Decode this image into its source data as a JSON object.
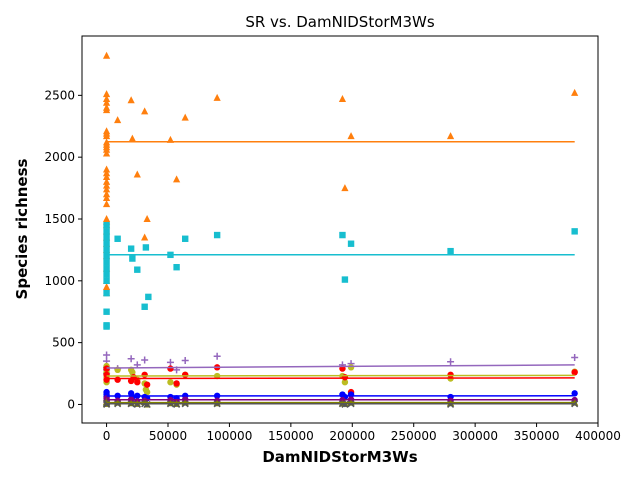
{
  "chart_data": {
    "type": "scatter",
    "title": "SR vs. DamNIDStorM3Ws",
    "xlabel": "DamNIDStorM3Ws",
    "ylabel": "Species richness",
    "xlim": [
      -20000,
      400000
    ],
    "ylim": [
      -150,
      2980
    ],
    "xticks": [
      0,
      50000,
      100000,
      150000,
      200000,
      250000,
      300000,
      350000,
      400000
    ],
    "yticks": [
      0,
      500,
      1000,
      1500,
      2000,
      2500
    ],
    "grid": false,
    "legend": false,
    "series": [
      {
        "marker": "triangle",
        "color": "#ff7f0e",
        "points": [
          [
            0,
            2820
          ],
          [
            0,
            2510
          ],
          [
            0,
            2470
          ],
          [
            0,
            2440
          ],
          [
            0,
            2400
          ],
          [
            0,
            2380
          ],
          [
            0,
            2210
          ],
          [
            0,
            2190
          ],
          [
            0,
            2170
          ],
          [
            0,
            2120
          ],
          [
            0,
            2100
          ],
          [
            0,
            2080
          ],
          [
            0,
            2060
          ],
          [
            0,
            2030
          ],
          [
            0,
            1900
          ],
          [
            0,
            1870
          ],
          [
            0,
            1840
          ],
          [
            0,
            1800
          ],
          [
            0,
            1770
          ],
          [
            0,
            1740
          ],
          [
            0,
            1700
          ],
          [
            0,
            1670
          ],
          [
            0,
            1620
          ],
          [
            0,
            1500
          ],
          [
            0,
            1480
          ],
          [
            0,
            1450
          ],
          [
            0,
            1400
          ],
          [
            0,
            1350
          ],
          [
            0,
            1300
          ],
          [
            0,
            1250
          ],
          [
            0,
            1200
          ],
          [
            0,
            1100
          ],
          [
            0,
            1000
          ],
          [
            0,
            950
          ],
          [
            0,
            900
          ],
          [
            9000,
            2300
          ],
          [
            20000,
            2460
          ],
          [
            21000,
            2150
          ],
          [
            25000,
            1860
          ],
          [
            31000,
            2370
          ],
          [
            31000,
            1350
          ],
          [
            33000,
            1500
          ],
          [
            52000,
            2140
          ],
          [
            57000,
            1820
          ],
          [
            64000,
            2320
          ],
          [
            90000,
            2480
          ],
          [
            192000,
            2470
          ],
          [
            194000,
            1750
          ],
          [
            199000,
            2170
          ],
          [
            280000,
            2170
          ],
          [
            381000,
            2520
          ]
        ],
        "fit": [
          [
            0,
            2125
          ],
          [
            381000,
            2125
          ]
        ]
      },
      {
        "marker": "square",
        "color": "#17becf",
        "points": [
          [
            0,
            1450
          ],
          [
            0,
            1400
          ],
          [
            0,
            1350
          ],
          [
            0,
            1300
          ],
          [
            0,
            1250
          ],
          [
            0,
            1200
          ],
          [
            0,
            1150
          ],
          [
            0,
            1100
          ],
          [
            0,
            1050
          ],
          [
            0,
            1000
          ],
          [
            0,
            900
          ],
          [
            0,
            750
          ],
          [
            0,
            640
          ],
          [
            0,
            630
          ],
          [
            9000,
            1340
          ],
          [
            20000,
            1260
          ],
          [
            21000,
            1180
          ],
          [
            25000,
            1090
          ],
          [
            31000,
            790
          ],
          [
            32000,
            1270
          ],
          [
            34000,
            870
          ],
          [
            52000,
            1210
          ],
          [
            57000,
            1110
          ],
          [
            64000,
            1340
          ],
          [
            90000,
            1370
          ],
          [
            192000,
            1370
          ],
          [
            194000,
            1010
          ],
          [
            199000,
            1300
          ],
          [
            280000,
            1240
          ],
          [
            381000,
            1400
          ]
        ],
        "fit": [
          [
            0,
            1210
          ],
          [
            381000,
            1210
          ]
        ]
      },
      {
        "marker": "plus",
        "color": "#9467bd",
        "points": [
          [
            0,
            400
          ],
          [
            0,
            350
          ],
          [
            0,
            300
          ],
          [
            0,
            280
          ],
          [
            0,
            250
          ],
          [
            9000,
            290
          ],
          [
            20000,
            370
          ],
          [
            25000,
            320
          ],
          [
            31000,
            360
          ],
          [
            52000,
            340
          ],
          [
            57000,
            280
          ],
          [
            64000,
            355
          ],
          [
            90000,
            390
          ],
          [
            192000,
            320
          ],
          [
            199000,
            330
          ],
          [
            280000,
            345
          ],
          [
            381000,
            380
          ]
        ],
        "fit": [
          [
            0,
            295
          ],
          [
            381000,
            320
          ]
        ]
      },
      {
        "marker": "circle",
        "color": "#bcbd22",
        "points": [
          [
            0,
            310
          ],
          [
            0,
            260
          ],
          [
            0,
            220
          ],
          [
            0,
            180
          ],
          [
            9000,
            280
          ],
          [
            20000,
            280
          ],
          [
            21000,
            260
          ],
          [
            25000,
            200
          ],
          [
            31000,
            170
          ],
          [
            32000,
            120
          ],
          [
            33000,
            100
          ],
          [
            52000,
            180
          ],
          [
            57000,
            160
          ],
          [
            64000,
            240
          ],
          [
            90000,
            230
          ],
          [
            192000,
            230
          ],
          [
            194000,
            180
          ],
          [
            199000,
            300
          ],
          [
            280000,
            210
          ],
          [
            381000,
            265
          ]
        ],
        "fit": [
          [
            0,
            230
          ],
          [
            381000,
            235
          ]
        ]
      },
      {
        "marker": "circle",
        "color": "#ff0000",
        "points": [
          [
            0,
            290
          ],
          [
            0,
            240
          ],
          [
            0,
            200
          ],
          [
            9000,
            200
          ],
          [
            20000,
            190
          ],
          [
            22000,
            220
          ],
          [
            25000,
            180
          ],
          [
            31000,
            240
          ],
          [
            33000,
            160
          ],
          [
            52000,
            290
          ],
          [
            57000,
            170
          ],
          [
            64000,
            240
          ],
          [
            90000,
            300
          ],
          [
            192000,
            290
          ],
          [
            194000,
            220
          ],
          [
            199000,
            100
          ],
          [
            280000,
            240
          ],
          [
            381000,
            260
          ]
        ],
        "fit": [
          [
            0,
            210
          ],
          [
            381000,
            215
          ]
        ]
      },
      {
        "marker": "circle",
        "color": "#0000ff",
        "points": [
          [
            0,
            100
          ],
          [
            0,
            80
          ],
          [
            0,
            60
          ],
          [
            9000,
            70
          ],
          [
            20000,
            90
          ],
          [
            21000,
            60
          ],
          [
            25000,
            70
          ],
          [
            31000,
            60
          ],
          [
            33000,
            50
          ],
          [
            52000,
            60
          ],
          [
            57000,
            50
          ],
          [
            64000,
            70
          ],
          [
            90000,
            70
          ],
          [
            192000,
            80
          ],
          [
            194000,
            60
          ],
          [
            199000,
            80
          ],
          [
            280000,
            60
          ],
          [
            381000,
            90
          ]
        ],
        "fit": [
          [
            0,
            68
          ],
          [
            381000,
            70
          ]
        ]
      },
      {
        "marker": "circle",
        "color": "#800080",
        "points": [
          [
            0,
            50
          ],
          [
            0,
            30
          ],
          [
            0,
            20
          ],
          [
            9000,
            30
          ],
          [
            20000,
            40
          ],
          [
            25000,
            25
          ],
          [
            31000,
            30
          ],
          [
            52000,
            35
          ],
          [
            57000,
            20
          ],
          [
            64000,
            40
          ],
          [
            90000,
            30
          ],
          [
            192000,
            35
          ],
          [
            199000,
            40
          ],
          [
            280000,
            30
          ],
          [
            381000,
            35
          ]
        ],
        "fit": [
          [
            0,
            38
          ],
          [
            381000,
            38
          ]
        ]
      },
      {
        "marker": "triangle",
        "color": "#808000",
        "points": [
          [
            0,
            20
          ],
          [
            0,
            10
          ],
          [
            0,
            5
          ],
          [
            9000,
            15
          ],
          [
            20000,
            10
          ],
          [
            25000,
            5
          ],
          [
            31000,
            20
          ],
          [
            33000,
            0
          ],
          [
            52000,
            10
          ],
          [
            57000,
            5
          ],
          [
            64000,
            15
          ],
          [
            90000,
            10
          ],
          [
            192000,
            10
          ],
          [
            194000,
            5
          ],
          [
            199000,
            15
          ],
          [
            280000,
            10
          ],
          [
            381000,
            15
          ]
        ],
        "fit": [
          [
            0,
            15
          ],
          [
            381000,
            15
          ]
        ]
      },
      {
        "marker": "x",
        "color": "#555555",
        "points": [
          [
            0,
            10
          ],
          [
            0,
            0
          ],
          [
            9000,
            5
          ],
          [
            20000,
            5
          ],
          [
            25000,
            0
          ],
          [
            31000,
            5
          ],
          [
            33000,
            0
          ],
          [
            52000,
            5
          ],
          [
            57000,
            0
          ],
          [
            64000,
            5
          ],
          [
            90000,
            5
          ],
          [
            192000,
            5
          ],
          [
            194000,
            0
          ],
          [
            199000,
            5
          ],
          [
            280000,
            0
          ],
          [
            381000,
            5
          ]
        ],
        "fit": [
          [
            0,
            5
          ],
          [
            381000,
            5
          ]
        ]
      }
    ]
  }
}
